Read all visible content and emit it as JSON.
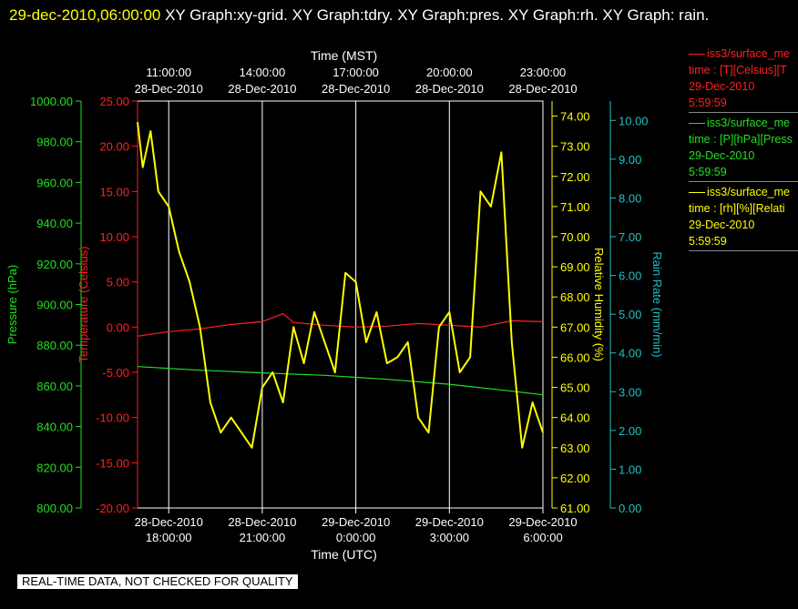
{
  "header": {
    "timestamp": "29-dec-2010,06:00:00",
    "graphs": " XY Graph:xy-grid.  XY Graph:tdry.  XY Graph:pres.  XY Graph:rh.  XY Graph: rain."
  },
  "legend": [
    {
      "series": "iss3/surface_me",
      "line1": "time : [T][Celsius][T",
      "line2": "29-Dec-2010",
      "line3": "5:59:59",
      "color": "#ff2020"
    },
    {
      "series": "iss3/surface_me",
      "line1": "time : [P][hPa][Press",
      "line2": "29-Dec-2010",
      "line3": "5:59:59",
      "color": "#20e020"
    },
    {
      "series": "iss3/surface_me",
      "line1": "time : [rh][%][Relati",
      "line2": "29-Dec-2010",
      "line3": "5:59:59",
      "color": "#ffff00"
    }
  ],
  "notice": "REAL-TIME DATA, NOT CHECKED FOR QUALITY",
  "chart_data": {
    "type": "line",
    "grid": true,
    "x_axis_bottom": {
      "label": "Time (UTC)",
      "range": [
        "28-Dec-2010 17:00:00",
        "29-Dec-2010 06:00:00"
      ],
      "ticks": [
        {
          "date": "28-Dec-2010",
          "time": "18:00:00"
        },
        {
          "date": "28-Dec-2010",
          "time": "21:00:00"
        },
        {
          "date": "29-Dec-2010",
          "time": "0:00:00"
        },
        {
          "date": "29-Dec-2010",
          "time": "3:00:00"
        },
        {
          "date": "29-Dec-2010",
          "time": "6:00:00"
        }
      ]
    },
    "x_axis_top": {
      "label": "Time (MST)",
      "ticks": [
        {
          "time": "11:00:00",
          "date": "28-Dec-2010"
        },
        {
          "time": "14:00:00",
          "date": "28-Dec-2010"
        },
        {
          "time": "17:00:00",
          "date": "28-Dec-2010"
        },
        {
          "time": "20:00:00",
          "date": "28-Dec-2010"
        },
        {
          "time": "23:00:00",
          "date": "28-Dec-2010"
        }
      ]
    },
    "y_axes": [
      {
        "id": "pres",
        "label": "Pressure (hPa)",
        "range": [
          800,
          1000
        ],
        "ticks": [
          "800.00",
          "820.00",
          "840.00",
          "860.00",
          "880.00",
          "900.00",
          "920.00",
          "940.00",
          "960.00",
          "980.00",
          "1000.00"
        ],
        "color": "#20e020"
      },
      {
        "id": "temp",
        "label": "Temperature (Celsius)",
        "range": [
          -20,
          25
        ],
        "ticks": [
          "-20.00",
          "-15.00",
          "-10.00",
          "-5.00",
          "0.00",
          "5.00",
          "10.00",
          "15.00",
          "20.00",
          "25.00"
        ],
        "color": "#ff2020"
      },
      {
        "id": "rh",
        "label": "Relative Humidity (%)",
        "range": [
          61,
          74.5
        ],
        "ticks": [
          "61.00",
          "62.00",
          "63.00",
          "64.00",
          "65.00",
          "66.00",
          "67.00",
          "68.00",
          "69.00",
          "70.00",
          "71.00",
          "72.00",
          "73.00",
          "74.00"
        ],
        "color": "#ffff00"
      },
      {
        "id": "rain",
        "label": "Rain Rate (mm/min)",
        "range": [
          0,
          10.5
        ],
        "ticks": [
          "0.00",
          "1.00",
          "2.00",
          "3.00",
          "4.00",
          "5.00",
          "6.00",
          "7.00",
          "8.00",
          "9.00",
          "10.00"
        ],
        "color": "#20c0c0"
      }
    ],
    "series": [
      {
        "axis": "temp",
        "color": "#ff2020",
        "x": [
          "28-Dec-2010 17:00",
          "28-Dec-2010 18:00",
          "28-Dec-2010 19:00",
          "28-Dec-2010 20:00",
          "28-Dec-2010 21:00",
          "28-Dec-2010 21:40",
          "28-Dec-2010 22:00",
          "28-Dec-2010 23:00",
          "29-Dec-2010 00:00",
          "29-Dec-2010 01:00",
          "29-Dec-2010 02:00",
          "29-Dec-2010 03:00",
          "29-Dec-2010 04:00",
          "29-Dec-2010 05:00",
          "29-Dec-2010 06:00"
        ],
        "values": [
          -1.0,
          -0.5,
          -0.2,
          0.3,
          0.6,
          1.5,
          0.5,
          0.2,
          0.0,
          0.1,
          0.4,
          0.2,
          0.0,
          0.7,
          0.6
        ]
      },
      {
        "axis": "pres",
        "color": "#20e020",
        "x": [
          "28-Dec-2010 17:00",
          "28-Dec-2010 19:00",
          "28-Dec-2010 21:00",
          "28-Dec-2010 23:00",
          "29-Dec-2010 01:00",
          "29-Dec-2010 03:00",
          "29-Dec-2010 05:00",
          "29-Dec-2010 06:00"
        ],
        "values": [
          869.5,
          867.7,
          866.4,
          865.2,
          863.2,
          860.8,
          857.4,
          855.6
        ]
      },
      {
        "axis": "rh",
        "color": "#ffff00",
        "x": [
          "28-Dec-2010 17:00",
          "28-Dec-2010 17:10",
          "28-Dec-2010 17:25",
          "28-Dec-2010 17:40",
          "28-Dec-2010 18:00",
          "28-Dec-2010 18:20",
          "28-Dec-2010 18:40",
          "28-Dec-2010 19:00",
          "28-Dec-2010 19:20",
          "28-Dec-2010 19:40",
          "28-Dec-2010 20:00",
          "28-Dec-2010 20:20",
          "28-Dec-2010 20:40",
          "28-Dec-2010 21:00",
          "28-Dec-2010 21:20",
          "28-Dec-2010 21:40",
          "28-Dec-2010 22:00",
          "28-Dec-2010 22:20",
          "28-Dec-2010 22:40",
          "28-Dec-2010 23:00",
          "28-Dec-2010 23:20",
          "28-Dec-2010 23:40",
          "29-Dec-2010 00:00",
          "29-Dec-2010 00:20",
          "29-Dec-2010 00:40",
          "29-Dec-2010 01:00",
          "29-Dec-2010 01:20",
          "29-Dec-2010 01:40",
          "29-Dec-2010 02:00",
          "29-Dec-2010 02:20",
          "29-Dec-2010 02:40",
          "29-Dec-2010 03:00",
          "29-Dec-2010 03:20",
          "29-Dec-2010 03:40",
          "29-Dec-2010 04:00",
          "29-Dec-2010 04:20",
          "29-Dec-2010 04:40",
          "29-Dec-2010 05:00",
          "29-Dec-2010 05:20",
          "29-Dec-2010 05:40",
          "29-Dec-2010 06:00"
        ],
        "values": [
          73.8,
          72.3,
          73.5,
          71.5,
          71.0,
          69.5,
          68.5,
          67.0,
          64.5,
          63.5,
          64.0,
          63.5,
          63.0,
          65.0,
          65.5,
          64.5,
          67.0,
          65.8,
          67.5,
          66.5,
          65.5,
          68.8,
          68.5,
          66.5,
          67.5,
          65.8,
          66.0,
          66.5,
          64.0,
          63.5,
          67.0,
          67.5,
          65.5,
          66.0,
          71.5,
          71.0,
          72.8,
          66.5,
          63.0,
          64.5,
          63.5
        ]
      },
      {
        "axis": "rain",
        "color": "#20c0c0",
        "x": [],
        "values": []
      }
    ]
  }
}
